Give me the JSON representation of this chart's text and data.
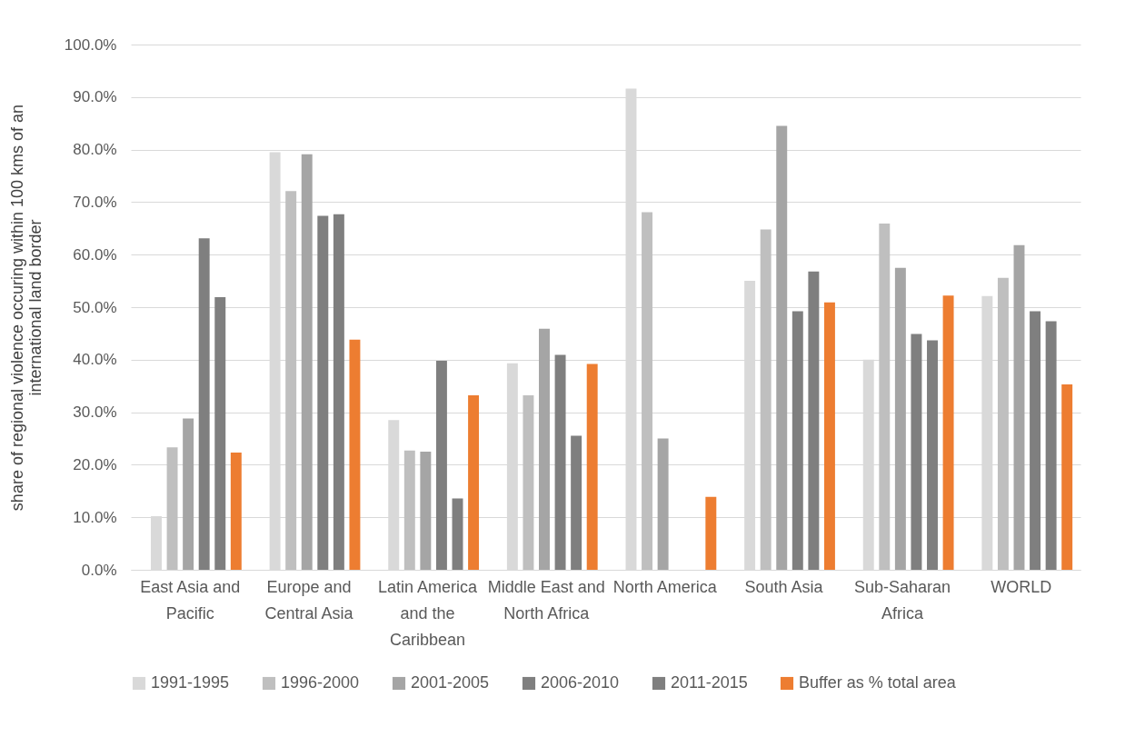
{
  "chart_data": {
    "type": "bar",
    "ylabel": "share of regional violence occuring within 100 kms of an international land border",
    "categories": [
      "East Asia and Pacific",
      "Europe and Central Asia",
      "Latin America and the Caribbean",
      "Middle East and North Africa",
      "North America",
      "South Asia",
      "Sub-Saharan Africa",
      "WORLD"
    ],
    "series": [
      {
        "name": "1991-1995",
        "color": "#d9d9d9",
        "values": [
          10.2,
          79.5,
          28.5,
          39.3,
          91.6,
          55.0,
          40.0,
          52.1
        ]
      },
      {
        "name": "1996-2000",
        "color": "#bfbfbf",
        "values": [
          23.3,
          72.1,
          22.7,
          33.2,
          68.1,
          64.8,
          65.9,
          55.6
        ]
      },
      {
        "name": "2001-2005",
        "color": "#a5a5a5",
        "values": [
          28.8,
          79.1,
          22.5,
          45.9,
          25.0,
          84.5,
          57.5,
          61.8
        ]
      },
      {
        "name": "2006-2010",
        "color": "#7f7f7f",
        "values": [
          63.1,
          67.4,
          39.8,
          40.9,
          null,
          49.2,
          44.9,
          49.2
        ]
      },
      {
        "name": "2011-2015",
        "color": "#7f7f7f",
        "values": [
          51.9,
          67.7,
          13.6,
          25.5,
          null,
          56.8,
          43.7,
          47.3
        ]
      },
      {
        "name": "Buffer as % total area",
        "color": "#ed7d31",
        "values": [
          22.3,
          43.8,
          33.2,
          39.2,
          13.9,
          50.9,
          52.2,
          35.3
        ]
      }
    ],
    "ylim": [
      0,
      100
    ],
    "yticks": [
      {
        "value": 0,
        "label": "0.0%"
      },
      {
        "value": 10,
        "label": "10.0%"
      },
      {
        "value": 20,
        "label": "20.0%"
      },
      {
        "value": 30,
        "label": "30.0%"
      },
      {
        "value": 40,
        "label": "40.0%"
      },
      {
        "value": 50,
        "label": "50.0%"
      },
      {
        "value": 60,
        "label": "60.0%"
      },
      {
        "value": 70,
        "label": "70.0%"
      },
      {
        "value": 80,
        "label": "80.0%"
      },
      {
        "value": 90,
        "label": "90.0%"
      },
      {
        "value": 100,
        "label": "100.0%"
      }
    ],
    "grid": "y",
    "legend": "bottom"
  }
}
